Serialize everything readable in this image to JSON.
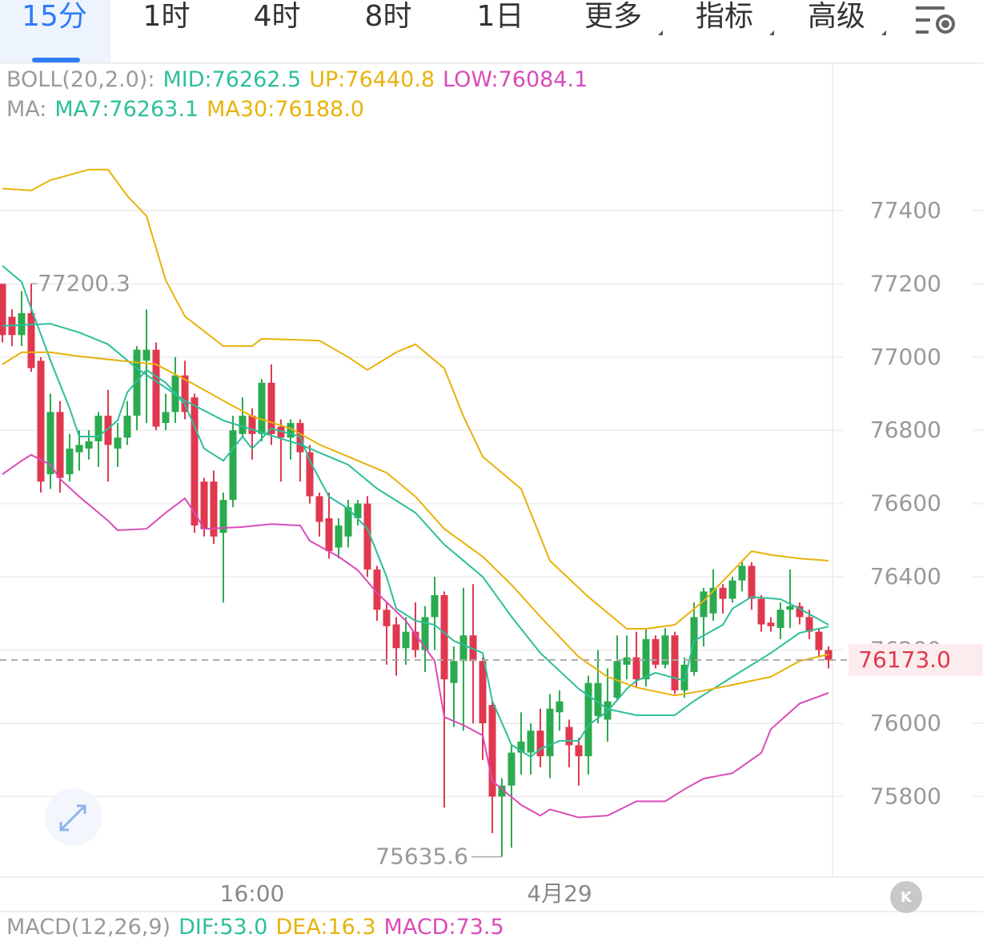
{
  "chart_data": {
    "type": "candlestick",
    "tabs": [
      "15分",
      "1时",
      "4时",
      "8时",
      "1日",
      "更多",
      "指标",
      "高级"
    ],
    "boll_legend": [
      {
        "text": "BOLL(20,2.0):",
        "color": "#9a9a9a"
      },
      {
        "text": "MID:76262.5",
        "color": "#2dbf9a"
      },
      {
        "text": "UP:76440.8",
        "color": "#e8b20c"
      },
      {
        "text": "LOW:76084.1",
        "color": "#d94bb8"
      }
    ],
    "ma_legend": [
      {
        "text": "MA:",
        "color": "#9a9a9a"
      },
      {
        "text": "MA7:76263.1",
        "color": "#2dbf9a"
      },
      {
        "text": "MA30:76188.0",
        "color": "#e8b20c"
      }
    ],
    "macd_legend": [
      {
        "text": "MACD(12,26,9)",
        "color": "#9a9a9a"
      },
      {
        "text": "DIF:53.0",
        "color": "#2dbf9a"
      },
      {
        "text": "DEA:16.3",
        "color": "#e8b20c"
      },
      {
        "text": "MACD:73.5",
        "color": "#d94bb8"
      }
    ],
    "categories": [
      null,
      null,
      null,
      null,
      null,
      null,
      null,
      null,
      null,
      null,
      null,
      null,
      null,
      null,
      null,
      null,
      null,
      null,
      null,
      null,
      null,
      null,
      null,
      null,
      null,
      null,
      "16:00",
      null,
      null,
      null,
      null,
      null,
      null,
      null,
      null,
      null,
      null,
      null,
      null,
      null,
      null,
      null,
      null,
      null,
      null,
      null,
      null,
      null,
      null,
      null,
      null,
      null,
      null,
      null,
      null,
      null,
      null,
      null,
      "4月29",
      null,
      null,
      null,
      null,
      null,
      null,
      null,
      null,
      null,
      null,
      null,
      null,
      null,
      null,
      null,
      null,
      null,
      null,
      null,
      null,
      null,
      null,
      null,
      null,
      null,
      null,
      null,
      null
    ],
    "open": [
      77200,
      77110,
      77060,
      77120,
      76990,
      76680,
      76850,
      76680,
      76740,
      76750,
      76770,
      76840,
      76750,
      76780,
      76840,
      76990,
      77020,
      76820,
      76850,
      76950,
      76890,
      76660,
      76660,
      76520,
      76610,
      76790,
      76840,
      76790,
      76930,
      76810,
      76780,
      76820,
      76740,
      76620,
      76560,
      76480,
      76510,
      76560,
      76600,
      76420,
      76310,
      76270,
      76205,
      76250,
      76200,
      76290,
      76350,
      76110,
      76170,
      76240,
      76170,
      76050,
      75800,
      75830,
      75920,
      75920,
      75980,
      75910,
      76030,
      75990,
      75940,
      75910,
      76020,
      76010,
      76070,
      76160,
      76180,
      76120,
      76230,
      76160,
      76240,
      76090,
      76140,
      76290,
      76300,
      76370,
      76340,
      76390,
      76430,
      76340,
      76275,
      76260,
      76310,
      76320,
      76290,
      76250,
      76200
    ],
    "high": [
      77200,
      77130,
      77180,
      77200.3,
      77000,
      76900,
      76880,
      76790,
      76800,
      76800,
      76850,
      76910,
      76820,
      76880,
      77030,
      77130,
      77040,
      76900,
      77000,
      76990,
      76900,
      76670,
      76690,
      76630,
      76840,
      76890,
      76860,
      76940,
      76980,
      76830,
      76830,
      76830,
      76760,
      76630,
      76630,
      76560,
      76610,
      76610,
      76620,
      76430,
      76330,
      76290,
      76290,
      76330,
      76320,
      76400,
      76360,
      76210,
      76370,
      76380,
      76180,
      76060,
      75850,
      75940,
      76030,
      76000,
      76040,
      76080,
      76090,
      76010,
      75960,
      76130,
      76200,
      76150,
      76240,
      76240,
      76250,
      76260,
      76240,
      76260,
      76250,
      76180,
      76330,
      76370,
      76420,
      76380,
      76400,
      76440,
      76440,
      76350,
      76290,
      76330,
      76420,
      76330,
      76310,
      76260,
      76210
    ],
    "low": [
      77040,
      77030,
      77030,
      76960,
      76630,
      76640,
      76630,
      76660,
      76690,
      76720,
      76700,
      76660,
      76700,
      76760,
      76800,
      76820,
      76800,
      76800,
      76820,
      76830,
      76520,
      76510,
      76490,
      76330,
      76590,
      76780,
      76720,
      76770,
      76760,
      76660,
      76720,
      76660,
      76600,
      76510,
      76450,
      76450,
      76480,
      76540,
      76400,
      76280,
      76160,
      76130,
      76160,
      76180,
      76140,
      76200,
      75770,
      75990,
      75980,
      76000,
      75900,
      75700,
      75635.6,
      75660,
      75860,
      75860,
      75880,
      75850,
      75980,
      75880,
      75830,
      75860,
      76000,
      75950,
      76060,
      76120,
      76100,
      76100,
      76150,
      76150,
      76080,
      76070,
      76130,
      76210,
      76280,
      76300,
      76330,
      76360,
      76310,
      76250,
      76250,
      76230,
      76260,
      76270,
      76230,
      76180,
      76150
    ],
    "close": [
      77060,
      77060,
      77120,
      76970,
      76660,
      76850,
      76670,
      76750,
      76760,
      76770,
      76840,
      76760,
      76780,
      76840,
      77020,
      77020,
      76810,
      76850,
      76950,
      76850,
      76540,
      76530,
      76510,
      76610,
      76800,
      76840,
      76790,
      76930,
      76790,
      76780,
      76820,
      76740,
      76620,
      76550,
      76470,
      76540,
      76590,
      76600,
      76420,
      76310,
      76265,
      76205,
      76250,
      76200,
      76290,
      76350,
      76120,
      76170,
      76240,
      76170,
      76000,
      75800,
      75830,
      75920,
      75950,
      75980,
      75910,
      76040,
      76060,
      75940,
      75910,
      76110,
      76110,
      76060,
      76170,
      76180,
      76120,
      76230,
      76160,
      76240,
      76090,
      76160,
      76290,
      76360,
      76370,
      76340,
      76390,
      76430,
      76340,
      76270,
      76265,
      76310,
      76320,
      76290,
      76250,
      76200,
      76173
    ],
    "up_color": "#2bab4f",
    "down_color": "#e0384f",
    "lines": [
      {
        "color": "#e8b20c",
        "x": [
          0,
          3,
          5,
          9,
          11,
          13,
          15,
          17,
          19,
          23,
          26,
          27,
          33,
          36,
          38,
          41,
          43,
          46,
          48,
          50,
          54,
          57,
          61,
          65,
          67,
          70,
          73,
          78,
          80,
          83,
          86
        ],
        "values": [
          77460,
          77455,
          77483,
          77512,
          77512,
          77440,
          77385,
          77210,
          77111,
          77030,
          77030,
          77050,
          77045,
          77000,
          76965,
          77013,
          77035,
          76969,
          76838,
          76728,
          76640,
          76444,
          76345,
          76258,
          76258,
          76269,
          76334,
          76470,
          76460,
          76450,
          76444
        ]
      },
      {
        "color": "#2dbf9a",
        "x": [
          0,
          3,
          5,
          8,
          11,
          14,
          19,
          23,
          27,
          31,
          36,
          39,
          43,
          46,
          50,
          53,
          56,
          60,
          63,
          66,
          70,
          72,
          76,
          80,
          83,
          86
        ],
        "values": [
          77085,
          77089,
          77091,
          77067,
          77035,
          76969,
          76881,
          76827,
          76794,
          76761,
          76706,
          76641,
          76575,
          76488,
          76400,
          76291,
          76192,
          76094,
          76039,
          76022,
          76022,
          76061,
          76127,
          76192,
          76247,
          76264
        ]
      },
      {
        "color": "#2dbf9a",
        "x": [
          0,
          2,
          3,
          5,
          7,
          8,
          10,
          12,
          13,
          15,
          17,
          19,
          21,
          23,
          25,
          26,
          28,
          31,
          32,
          34,
          36,
          38,
          40,
          41,
          43,
          45,
          47,
          50,
          51,
          53,
          55,
          56,
          58,
          60,
          61,
          63,
          65,
          66,
          68,
          71,
          72,
          75,
          76,
          78,
          81,
          83,
          86
        ],
        "values": [
          77249,
          77205,
          77133,
          76991,
          76860,
          76783,
          76783,
          76827,
          76904,
          76965,
          76930,
          76871,
          76750,
          76717,
          76783,
          76750,
          76805,
          76783,
          76717,
          76619,
          76586,
          76531,
          76400,
          76313,
          76280,
          76269,
          76225,
          76192,
          76061,
          75941,
          75908,
          75930,
          75952,
          75952,
          75995,
          76033,
          76094,
          76116,
          76138,
          76116,
          76225,
          76269,
          76313,
          76345,
          76339,
          76313,
          76269
        ]
      },
      {
        "color": "#e8b20c",
        "x": [
          0,
          2,
          5,
          8,
          12,
          16,
          20,
          23,
          26,
          30,
          33,
          36,
          40,
          43,
          46,
          50,
          53,
          56,
          60,
          63,
          66,
          70,
          73,
          76,
          80,
          83,
          86
        ],
        "values": [
          76980,
          77013,
          77013,
          77002,
          76991,
          76980,
          76925,
          76881,
          76838,
          76805,
          76761,
          76728,
          76684,
          76619,
          76531,
          76455,
          76378,
          76291,
          76181,
          76127,
          76098,
          76076,
          76089,
          76105,
          76127,
          76170,
          76188
        ]
      },
      {
        "color": "#d94bb8",
        "x": [
          0,
          2,
          3,
          5,
          6,
          8,
          11,
          12,
          15,
          17,
          19,
          20,
          21,
          25,
          28,
          31,
          32,
          35,
          37,
          39,
          42,
          45,
          46,
          48,
          50,
          51,
          54,
          56,
          57,
          60,
          63,
          66,
          69,
          71,
          73,
          76,
          79,
          80,
          83,
          86
        ],
        "values": [
          76680,
          76717,
          76733,
          76706,
          76667,
          76619,
          76553,
          76527,
          76531,
          76575,
          76614,
          76575,
          76531,
          76536,
          76544,
          76540,
          76498,
          76455,
          76418,
          76356,
          76280,
          76170,
          76017,
          75995,
          75967,
          75842,
          75777,
          75748,
          75765,
          75743,
          75748,
          75787,
          75787,
          75820,
          75849,
          75864,
          75919,
          75984,
          76054,
          76083
        ]
      }
    ],
    "last_price": {
      "value": 76173,
      "label": "76173.0"
    },
    "ylim": [
      75580,
      77800
    ],
    "yticks": [
      75800,
      76000,
      76200,
      76400,
      76600,
      76800,
      77000,
      77200,
      77400
    ],
    "grid": true
  }
}
